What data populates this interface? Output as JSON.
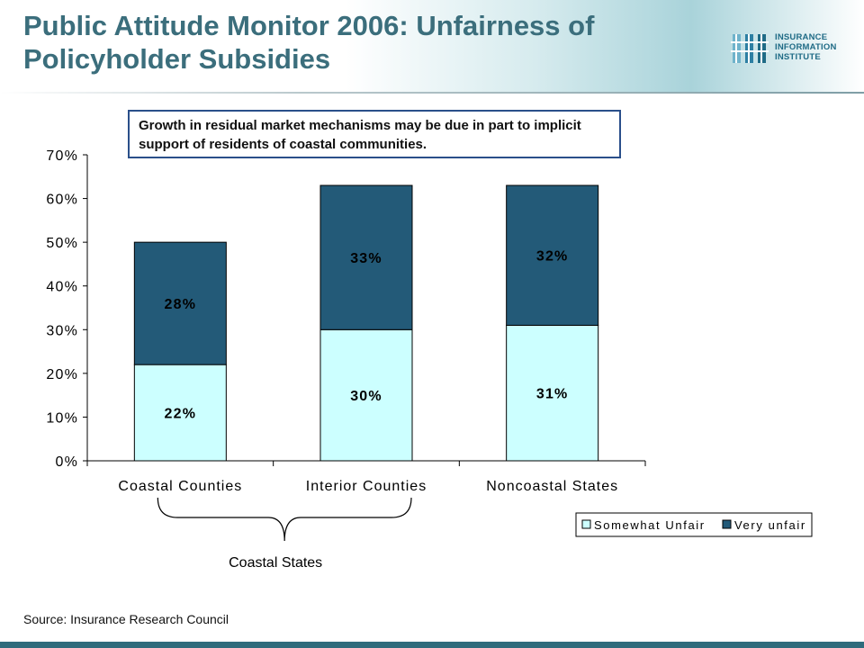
{
  "slide": {
    "title": "Public Attitude Monitor 2006: Unfairness of Policyholder Subsidies",
    "callout": "Growth in residual market mechanisms may be due in part to implicit support of residents of coastal communities.",
    "source": "Source: Insurance Research Council",
    "bracket_label": "Coastal States",
    "logo": {
      "line1": "INSURANCE",
      "line2": "INFORMATION",
      "line3": "INSTITUTE"
    }
  },
  "chart_data": {
    "type": "bar",
    "stacked": true,
    "categories": [
      "Coastal Counties",
      "Interior Counties",
      "Noncoastal States"
    ],
    "series": [
      {
        "name": "Somewhat Unfair",
        "values": [
          22,
          30,
          31
        ],
        "labels": [
          "22%",
          "30%",
          "31%"
        ],
        "color": "#ccffff"
      },
      {
        "name": "Very unfair",
        "values": [
          28,
          33,
          32
        ],
        "labels": [
          "28%",
          "33%",
          "32%"
        ],
        "color": "#235a78"
      }
    ],
    "yticks": [
      "0%",
      "10%",
      "20%",
      "30%",
      "40%",
      "50%",
      "60%",
      "70%"
    ],
    "ylim": [
      0,
      70
    ],
    "grid": false,
    "legend_position": "bottom-right"
  }
}
